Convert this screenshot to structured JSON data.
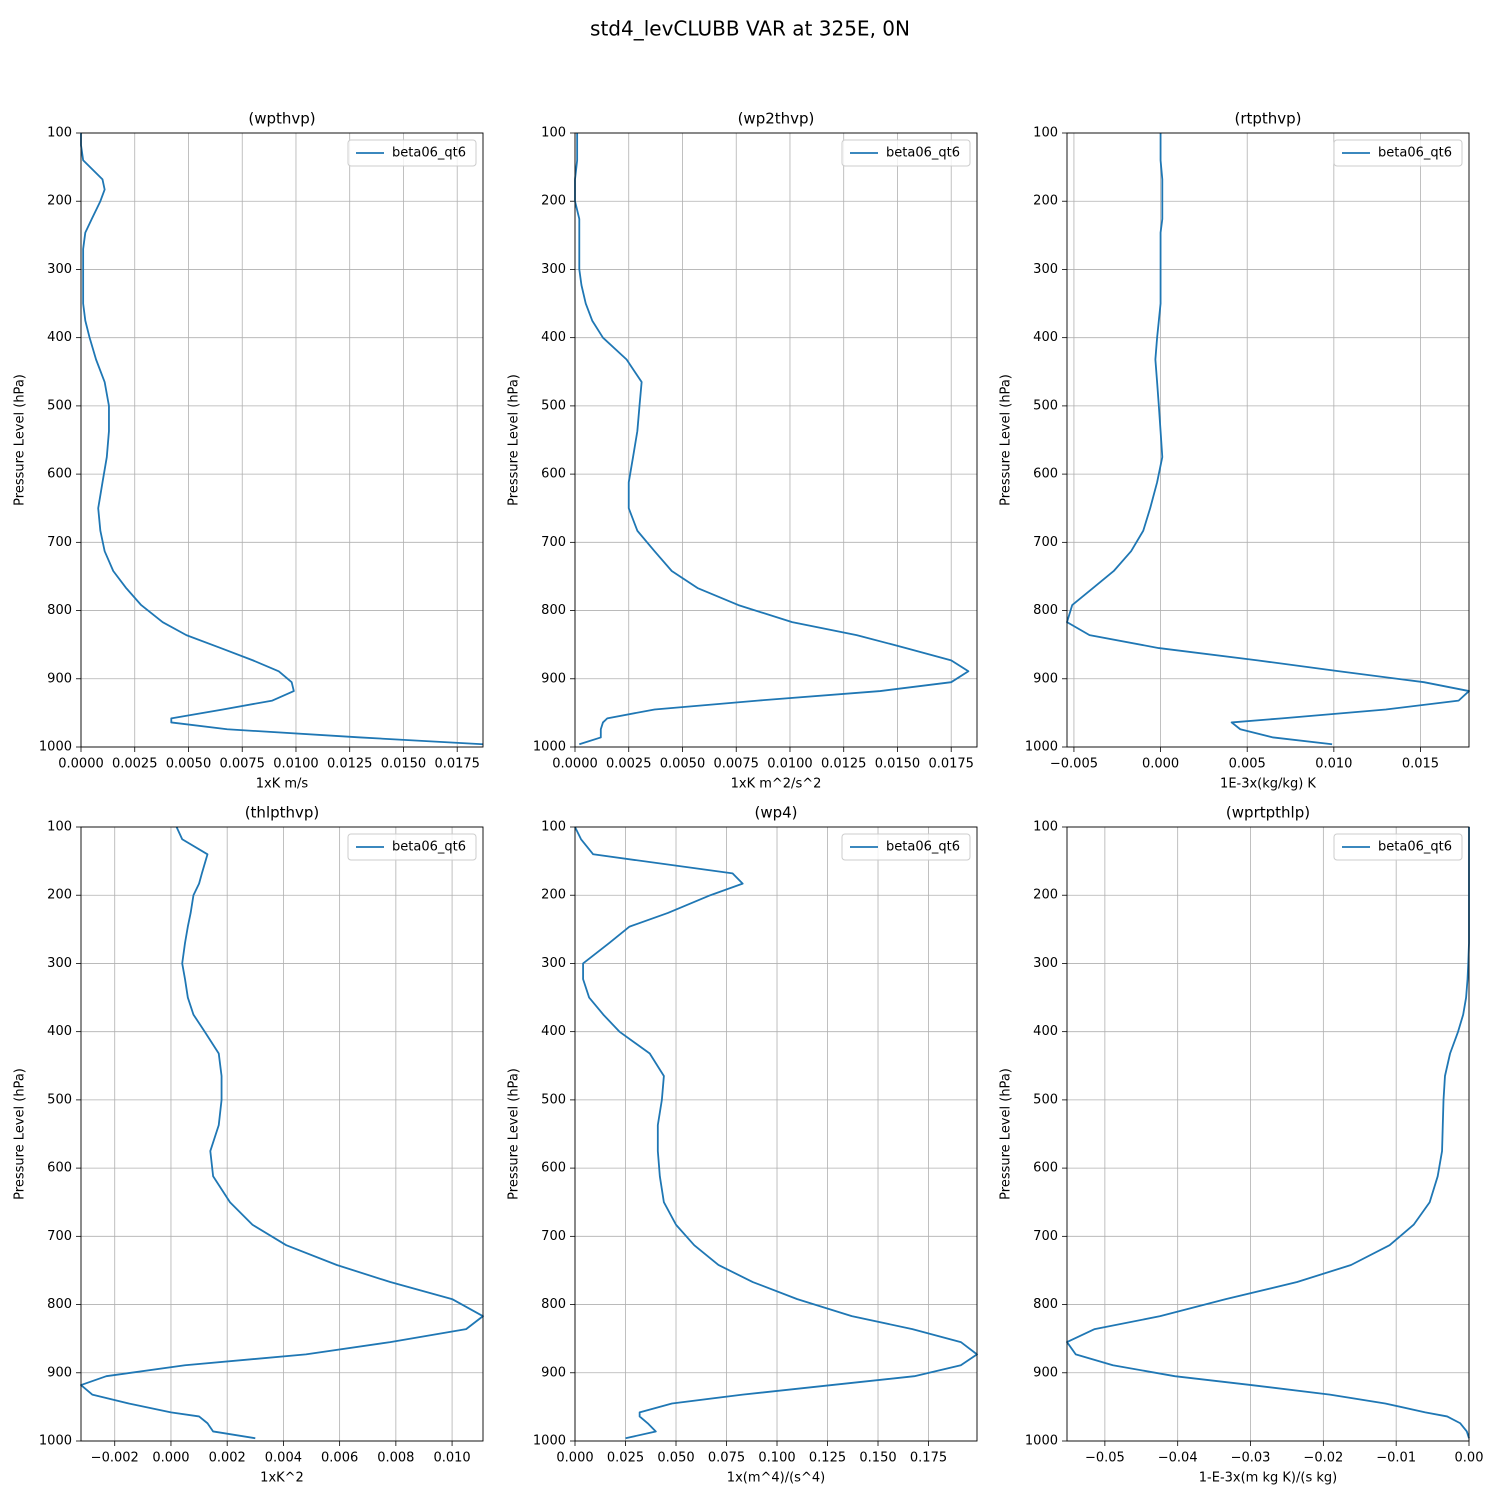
{
  "title": "std4_levCLUBB VAR at 325E, 0N",
  "chart_data": [
    {
      "type": "line",
      "title": "(wpthvp)",
      "xlabel": "1xK m/s",
      "ylabel": "Pressure Level (hPa)",
      "y": [
        100,
        118,
        140,
        168,
        183,
        200,
        226,
        246,
        270,
        300,
        323,
        350,
        375,
        400,
        432,
        465,
        500,
        537,
        575,
        612,
        650,
        683,
        713,
        742,
        767,
        792,
        817,
        836,
        855,
        873,
        889,
        905,
        918,
        932,
        945,
        958,
        964,
        974,
        986,
        996
      ],
      "series": [
        {
          "name": "beta06_qt6",
          "color": "#1f77b4",
          "values": [
            0.0,
            0.0,
            0.0001,
            0.001,
            0.0011,
            0.0009,
            0.0005,
            0.0002,
            0.0001,
            0.0001,
            0.0001,
            0.0001,
            0.0002,
            0.0004,
            0.0007,
            0.0011,
            0.0013,
            0.0013,
            0.0012,
            0.001,
            0.0008,
            0.0009,
            0.0011,
            0.0015,
            0.0021,
            0.0028,
            0.0038,
            0.0049,
            0.0065,
            0.008,
            0.0092,
            0.0098,
            0.0099,
            0.0089,
            0.0066,
            0.0042,
            0.0042,
            0.0068,
            0.013,
            0.0187
          ]
        }
      ],
      "xlim": [
        0,
        0.0187
      ],
      "xticks": [
        {
          "value": 0,
          "label": "0.0000"
        },
        {
          "value": 0.0025,
          "label": "0.0025"
        },
        {
          "value": 0.005,
          "label": "0.0050"
        },
        {
          "value": 0.0075,
          "label": "0.0075"
        },
        {
          "value": 0.01,
          "label": "0.0100"
        },
        {
          "value": 0.0125,
          "label": "0.0125"
        },
        {
          "value": 0.015,
          "label": "0.0150"
        },
        {
          "value": 0.0175,
          "label": "0.0175"
        }
      ],
      "ylim": [
        1000,
        100
      ],
      "yticks": [
        100,
        200,
        300,
        400,
        500,
        600,
        700,
        800,
        900,
        1000
      ],
      "grid": true,
      "legend": "upper right"
    },
    {
      "type": "line",
      "title": "(wp2thvp)",
      "xlabel": "1xK m^2/s^2",
      "ylabel": "Pressure Level (hPa)",
      "y": [
        100,
        118,
        140,
        168,
        183,
        200,
        226,
        246,
        270,
        300,
        323,
        350,
        375,
        400,
        432,
        465,
        500,
        537,
        575,
        612,
        650,
        683,
        713,
        742,
        767,
        792,
        817,
        836,
        855,
        873,
        889,
        905,
        918,
        932,
        945,
        958,
        964,
        974,
        986,
        996
      ],
      "series": [
        {
          "name": "beta06_qt6",
          "color": "#1f77b4",
          "values": [
            0.0001,
            0.0001,
            0.0001,
            0.0,
            0.0,
            0.0,
            0.0002,
            0.0002,
            0.0002,
            0.0002,
            0.0003,
            0.0005,
            0.0008,
            0.0013,
            0.0024,
            0.0031,
            0.003,
            0.0029,
            0.0027,
            0.0025,
            0.0025,
            0.0029,
            0.0037,
            0.0045,
            0.0057,
            0.0076,
            0.0101,
            0.0131,
            0.0154,
            0.0175,
            0.0183,
            0.0175,
            0.0142,
            0.0085,
            0.0037,
            0.0015,
            0.0013,
            0.0012,
            0.0012,
            0.0002
          ]
        }
      ],
      "xlim": [
        0,
        0.0187
      ],
      "xticks": [
        {
          "value": 0,
          "label": "0.0000"
        },
        {
          "value": 0.0025,
          "label": "0.0025"
        },
        {
          "value": 0.005,
          "label": "0.0050"
        },
        {
          "value": 0.0075,
          "label": "0.0075"
        },
        {
          "value": 0.01,
          "label": "0.0100"
        },
        {
          "value": 0.0125,
          "label": "0.0125"
        },
        {
          "value": 0.015,
          "label": "0.0150"
        },
        {
          "value": 0.0175,
          "label": "0.0175"
        }
      ],
      "ylim": [
        1000,
        100
      ],
      "yticks": [
        100,
        200,
        300,
        400,
        500,
        600,
        700,
        800,
        900,
        1000
      ],
      "grid": true,
      "legend": "upper right"
    },
    {
      "type": "line",
      "title": "(rtpthvp)",
      "xlabel": "1E-3x(kg/kg) K",
      "ylabel": "Pressure Level (hPa)",
      "y": [
        100,
        118,
        140,
        168,
        183,
        200,
        226,
        246,
        270,
        300,
        323,
        350,
        375,
        400,
        432,
        465,
        500,
        537,
        575,
        612,
        650,
        683,
        713,
        742,
        767,
        792,
        817,
        836,
        855,
        873,
        889,
        905,
        918,
        932,
        945,
        958,
        964,
        974,
        986,
        996
      ],
      "series": [
        {
          "name": "beta06_qt6",
          "color": "#1f77b4",
          "values": [
            0.0,
            0.0,
            0.0,
            0.0001,
            0.0001,
            0.0001,
            0.0001,
            0.0,
            0.0,
            0.0,
            0.0,
            0.0,
            -0.0001,
            -0.0002,
            -0.0003,
            -0.0002,
            -0.0001,
            0.0,
            0.0001,
            -0.0002,
            -0.0006,
            -0.001,
            -0.0017,
            -0.0027,
            -0.0039,
            -0.0051,
            -0.0054,
            -0.0041,
            -0.0001,
            0.0056,
            0.0103,
            0.0152,
            0.0178,
            0.0172,
            0.013,
            0.007,
            0.0041,
            0.0046,
            0.0065,
            0.0099
          ]
        }
      ],
      "xlim": [
        -0.0054,
        0.0178
      ],
      "xticks": [
        {
          "value": -0.005,
          "label": "−0.005"
        },
        {
          "value": 0,
          "label": "0.000"
        },
        {
          "value": 0.005,
          "label": "0.005"
        },
        {
          "value": 0.01,
          "label": "0.010"
        },
        {
          "value": 0.015,
          "label": "0.015"
        }
      ],
      "ylim": [
        1000,
        100
      ],
      "yticks": [
        100,
        200,
        300,
        400,
        500,
        600,
        700,
        800,
        900,
        1000
      ],
      "grid": true,
      "legend": "upper right"
    },
    {
      "type": "line",
      "title": "(thlpthvp)",
      "xlabel": "1xK^2",
      "ylabel": "Pressure Level (hPa)",
      "y": [
        100,
        118,
        140,
        168,
        183,
        200,
        226,
        246,
        270,
        300,
        323,
        350,
        375,
        400,
        432,
        465,
        500,
        537,
        575,
        612,
        650,
        683,
        713,
        742,
        767,
        792,
        817,
        836,
        855,
        873,
        889,
        905,
        918,
        932,
        945,
        958,
        964,
        974,
        986,
        996
      ],
      "series": [
        {
          "name": "beta06_qt6",
          "color": "#1f77b4",
          "values": [
            0.0002,
            0.0004,
            0.0013,
            0.0011,
            0.001,
            0.0008,
            0.0007,
            0.0006,
            0.0005,
            0.0004,
            0.0005,
            0.0006,
            0.0008,
            0.0012,
            0.0017,
            0.0018,
            0.0018,
            0.0017,
            0.0014,
            0.0015,
            0.0021,
            0.0029,
            0.0041,
            0.0059,
            0.0078,
            0.01,
            0.0111,
            0.0105,
            0.0078,
            0.0048,
            0.0005,
            -0.0023,
            -0.0032,
            -0.0028,
            -0.0015,
            0.0,
            0.001,
            0.0013,
            0.0015,
            0.003
          ]
        }
      ],
      "xlim": [
        -0.0032,
        0.0111
      ],
      "xticks": [
        {
          "value": -0.002,
          "label": "−0.002"
        },
        {
          "value": 0,
          "label": "0.000"
        },
        {
          "value": 0.002,
          "label": "0.002"
        },
        {
          "value": 0.004,
          "label": "0.004"
        },
        {
          "value": 0.006,
          "label": "0.006"
        },
        {
          "value": 0.008,
          "label": "0.008"
        },
        {
          "value": 0.01,
          "label": "0.010"
        }
      ],
      "ylim": [
        1000,
        100
      ],
      "yticks": [
        100,
        200,
        300,
        400,
        500,
        600,
        700,
        800,
        900,
        1000
      ],
      "grid": true,
      "legend": "upper right"
    },
    {
      "type": "line",
      "title": "(wp4)",
      "xlabel": "1x(m^4)/(s^4)",
      "ylabel": "Pressure Level (hPa)",
      "y": [
        100,
        118,
        140,
        168,
        183,
        200,
        226,
        246,
        270,
        300,
        323,
        350,
        375,
        400,
        432,
        465,
        500,
        537,
        575,
        612,
        650,
        683,
        713,
        742,
        767,
        792,
        817,
        836,
        855,
        873,
        889,
        905,
        918,
        932,
        945,
        958,
        964,
        974,
        986,
        996
      ],
      "series": [
        {
          "name": "beta06_qt6",
          "color": "#1f77b4",
          "values": [
            0.0,
            0.003,
            0.009,
            0.078,
            0.083,
            0.067,
            0.046,
            0.027,
            0.017,
            0.004,
            0.004,
            0.007,
            0.014,
            0.022,
            0.037,
            0.044,
            0.043,
            0.041,
            0.041,
            0.042,
            0.044,
            0.05,
            0.059,
            0.071,
            0.088,
            0.11,
            0.137,
            0.167,
            0.191,
            0.199,
            0.191,
            0.168,
            0.127,
            0.083,
            0.048,
            0.032,
            0.032,
            0.036,
            0.04,
            0.025
          ]
        }
      ],
      "xlim": [
        0,
        0.199
      ],
      "xticks": [
        {
          "value": 0,
          "label": "0.000"
        },
        {
          "value": 0.025,
          "label": "0.025"
        },
        {
          "value": 0.05,
          "label": "0.050"
        },
        {
          "value": 0.075,
          "label": "0.075"
        },
        {
          "value": 0.1,
          "label": "0.100"
        },
        {
          "value": 0.125,
          "label": "0.125"
        },
        {
          "value": 0.15,
          "label": "0.150"
        },
        {
          "value": 0.175,
          "label": "0.175"
        }
      ],
      "ylim": [
        1000,
        100
      ],
      "yticks": [
        100,
        200,
        300,
        400,
        500,
        600,
        700,
        800,
        900,
        1000
      ],
      "grid": true,
      "legend": "upper right"
    },
    {
      "type": "line",
      "title": "(wprtpthlp)",
      "xlabel": "1-E-3x(m kg K)/(s kg)",
      "ylabel": "Pressure Level (hPa)",
      "y": [
        100,
        118,
        140,
        168,
        183,
        200,
        226,
        246,
        270,
        300,
        323,
        350,
        375,
        400,
        432,
        465,
        500,
        537,
        575,
        612,
        650,
        683,
        713,
        742,
        767,
        792,
        817,
        836,
        855,
        873,
        889,
        905,
        918,
        932,
        945,
        958,
        964,
        974,
        986,
        996
      ],
      "series": [
        {
          "name": "beta06_qt6",
          "color": "#1f77b4",
          "values": [
            0.0,
            0.0,
            0.0,
            0.0,
            0.0,
            0.0,
            0.0,
            0.0,
            0.0,
            -0.0001,
            -0.0002,
            -0.0004,
            -0.0008,
            -0.0015,
            -0.0026,
            -0.0033,
            -0.0035,
            -0.0036,
            -0.0037,
            -0.0043,
            -0.0054,
            -0.0076,
            -0.0109,
            -0.0162,
            -0.0236,
            -0.0334,
            -0.0424,
            -0.0514,
            -0.0552,
            -0.054,
            -0.0489,
            -0.0404,
            -0.0299,
            -0.0191,
            -0.0115,
            -0.006,
            -0.003,
            -0.0012,
            -0.0003,
            0.0
          ]
        }
      ],
      "xlim": [
        -0.0552,
        0
      ],
      "xticks": [
        {
          "value": -0.05,
          "label": "−0.05"
        },
        {
          "value": -0.04,
          "label": "−0.04"
        },
        {
          "value": -0.03,
          "label": "−0.03"
        },
        {
          "value": -0.02,
          "label": "−0.02"
        },
        {
          "value": -0.01,
          "label": "−0.01"
        },
        {
          "value": 0,
          "label": "0.00"
        }
      ],
      "ylim": [
        1000,
        100
      ],
      "yticks": [
        100,
        200,
        300,
        400,
        500,
        600,
        700,
        800,
        900,
        1000
      ],
      "grid": true,
      "legend": "upper right"
    }
  ]
}
